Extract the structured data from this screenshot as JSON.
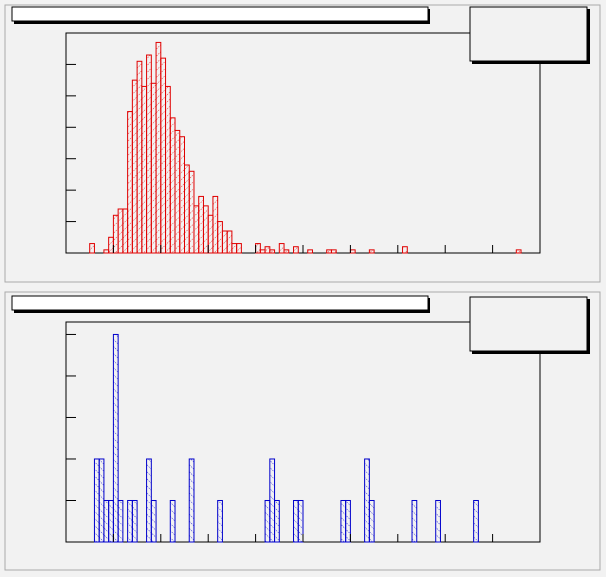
{
  "chart_data": [
    {
      "type": "histogram",
      "color": "#e00000",
      "hatch": "/",
      "bins": [
        0,
        1,
        2,
        3,
        4,
        5,
        6,
        7,
        8,
        9,
        10,
        11,
        12,
        13,
        14,
        15,
        16,
        17,
        18,
        19,
        20,
        21,
        22,
        23,
        24,
        25,
        26,
        27,
        28,
        29,
        30,
        31,
        32,
        33,
        34,
        35,
        36,
        37,
        38,
        39,
        40,
        41,
        42,
        43,
        44,
        45,
        46,
        47,
        48,
        49,
        50,
        51,
        52,
        53,
        54,
        55,
        56,
        57,
        58,
        59,
        60,
        61,
        62,
        63,
        64,
        65,
        66,
        67,
        68,
        69,
        70,
        71,
        72,
        73,
        74,
        75,
        76,
        77,
        78,
        79,
        80,
        81,
        82,
        83,
        84,
        85,
        86,
        87,
        88,
        89,
        90,
        91,
        92,
        93,
        94,
        95,
        96,
        97,
        98,
        99,
        100
      ],
      "values": [
        0,
        0,
        0,
        0,
        0,
        3,
        0,
        0,
        1,
        5,
        12,
        14,
        14,
        45,
        55,
        61,
        53,
        63,
        54,
        67,
        62,
        53,
        43,
        39,
        37,
        28,
        26,
        15,
        18,
        15,
        12,
        18,
        10,
        7,
        7,
        3,
        3,
        0,
        0,
        0,
        3,
        1,
        2,
        1,
        0,
        3,
        1,
        0,
        2,
        0,
        0,
        1,
        0,
        0,
        0,
        1,
        1,
        0,
        0,
        0,
        1,
        0,
        0,
        0,
        1,
        0,
        0,
        0,
        0,
        0,
        0,
        2,
        0,
        0,
        0,
        0,
        0,
        0,
        0,
        0,
        0,
        0,
        0,
        0,
        0,
        0,
        0,
        0,
        0,
        0,
        0,
        0,
        0,
        0,
        0,
        1,
        0,
        0,
        0,
        0
      ],
      "xlim": [
        0,
        100
      ],
      "xticks": [
        0,
        10,
        20,
        30,
        40,
        50,
        60,
        70,
        80,
        90,
        100
      ],
      "ylim": [
        0,
        70
      ],
      "yticks": [
        0,
        10,
        20,
        30,
        40,
        50,
        60,
        70
      ]
    },
    {
      "type": "histogram",
      "color": "#0000cc",
      "hatch": "\\",
      "bins": [
        0,
        1,
        2,
        3,
        4,
        5,
        6,
        7,
        8,
        9,
        10,
        11,
        12,
        13,
        14,
        15,
        16,
        17,
        18,
        19,
        20,
        21,
        22,
        23,
        24,
        25,
        26,
        27,
        28,
        29,
        30,
        31,
        32,
        33,
        34,
        35,
        36,
        37,
        38,
        39,
        40,
        41,
        42,
        43,
        44,
        45,
        46,
        47,
        48,
        49,
        50,
        51,
        52,
        53,
        54,
        55,
        56,
        57,
        58,
        59,
        60,
        61,
        62,
        63,
        64,
        65,
        66,
        67,
        68,
        69,
        70,
        71,
        72,
        73,
        74,
        75,
        76,
        77,
        78,
        79,
        80,
        81,
        82,
        83,
        84,
        85,
        86,
        87,
        88,
        89,
        90,
        91,
        92,
        93,
        94,
        95,
        96,
        97,
        98,
        99,
        100
      ],
      "values": [
        0,
        0,
        0,
        0,
        0,
        0,
        2,
        2,
        1,
        1,
        5,
        1,
        0,
        1,
        1,
        0,
        0,
        2,
        1,
        0,
        0,
        0,
        1,
        0,
        0,
        0,
        2,
        0,
        0,
        0,
        0,
        0,
        1,
        0,
        0,
        0,
        0,
        0,
        0,
        0,
        0,
        0,
        1,
        2,
        1,
        0,
        0,
        0,
        1,
        1,
        0,
        0,
        0,
        0,
        0,
        0,
        0,
        0,
        1,
        1,
        0,
        0,
        0,
        2,
        1,
        0,
        0,
        0,
        0,
        0,
        0,
        0,
        0,
        1,
        0,
        0,
        0,
        0,
        1,
        0,
        0,
        0,
        0,
        0,
        0,
        0,
        1,
        0,
        0,
        0,
        0,
        0,
        0,
        0,
        0,
        0,
        0,
        0,
        0,
        0
      ],
      "xlim": [
        0,
        100
      ],
      "xticks": [
        0,
        10,
        20,
        30,
        40,
        50,
        60,
        70,
        80,
        90,
        100
      ],
      "ylim": [
        0,
        5.3
      ],
      "yticks": [
        0,
        1,
        2,
        3,
        4,
        5
      ]
    }
  ]
}
